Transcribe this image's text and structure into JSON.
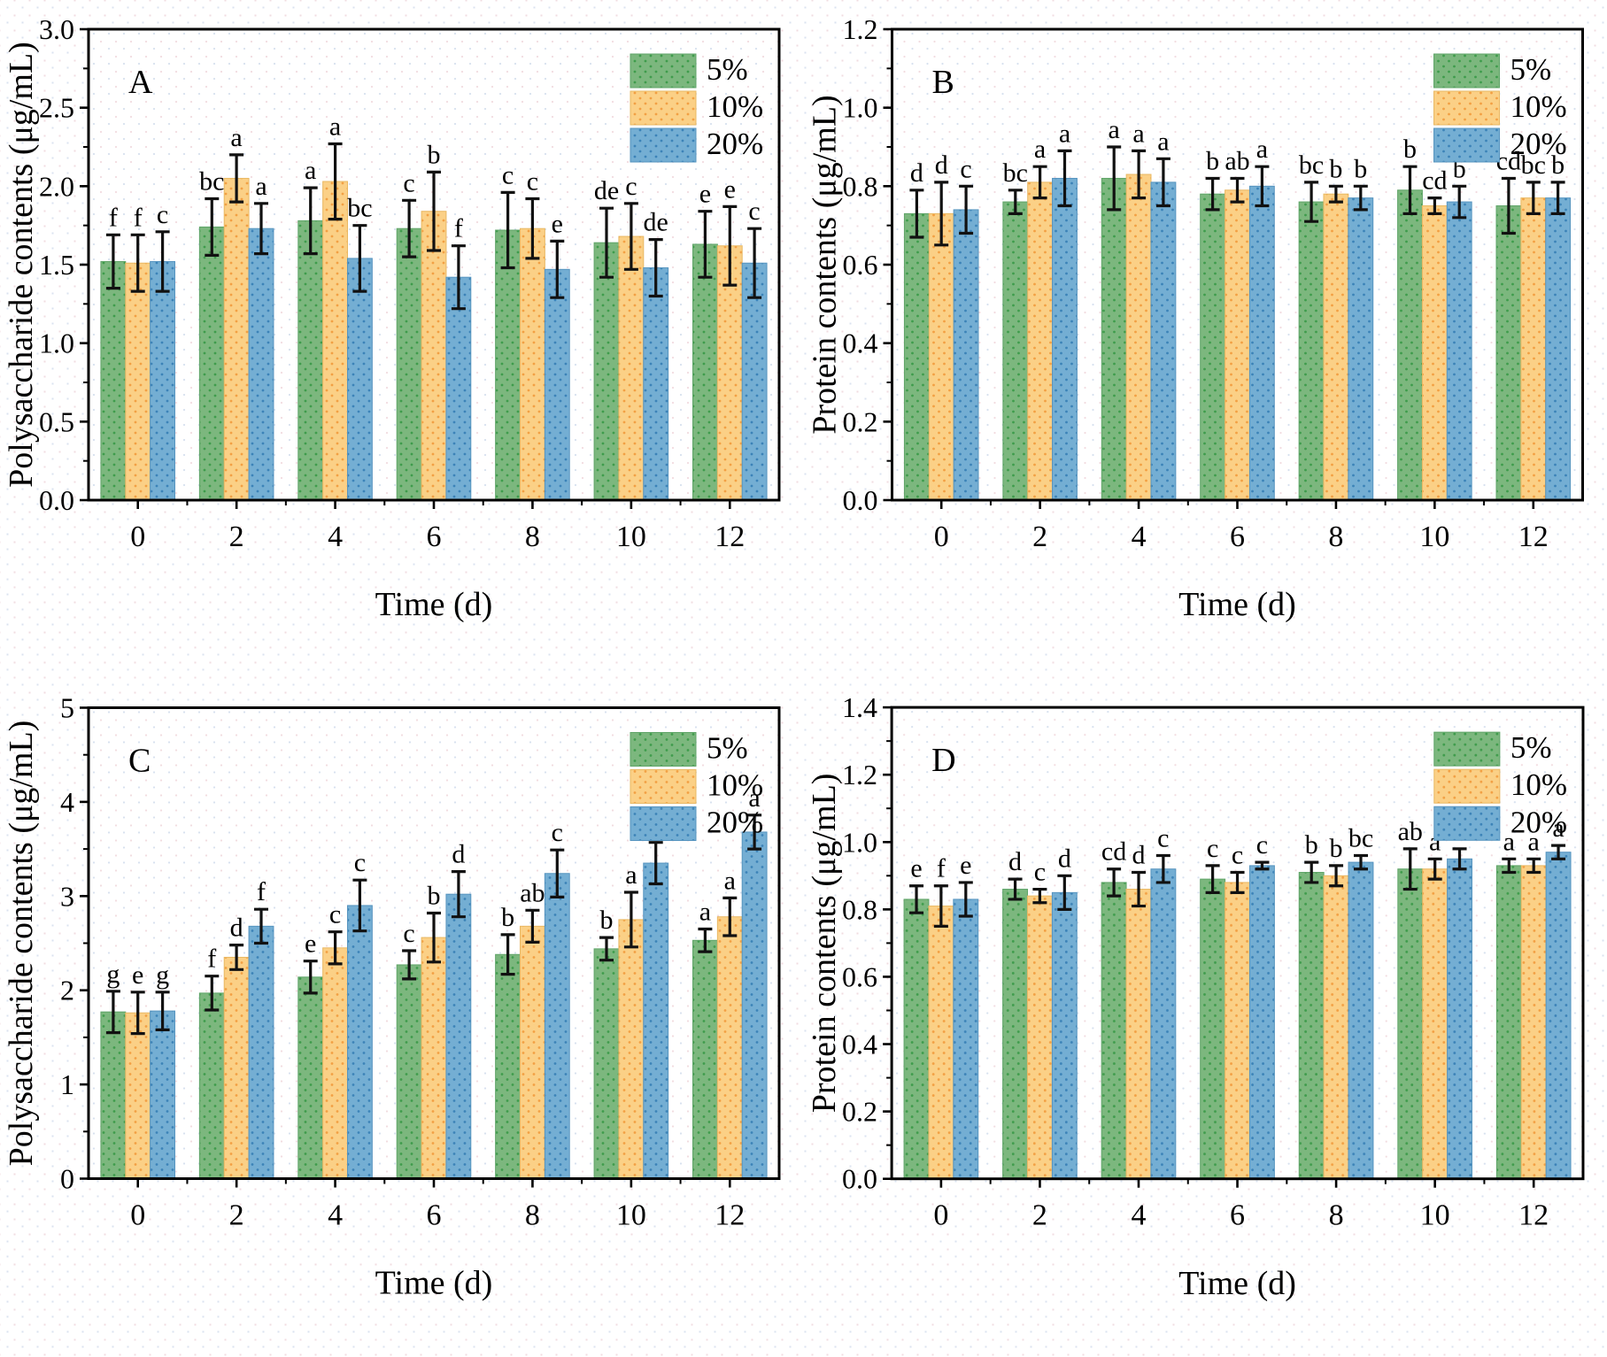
{
  "legend": {
    "labels": [
      "5%",
      "10%",
      "20%"
    ]
  },
  "colors": {
    "series_5pct_base": "#7cb77e",
    "series_5pct_dot": "#3f9c4c",
    "series_5pct_edge": "#5fa468",
    "series_10pct_base": "#fbd086",
    "series_10pct_dot": "#f2a044",
    "series_10pct_edge": "#e9b863",
    "series_20pct_base": "#74aed3",
    "series_20pct_dot": "#3c83b8",
    "series_20pct_edge": "#5694bf",
    "axis": "#000000",
    "error_bar": "#111111",
    "plot_bg_dot_blue": "#d7e1ef",
    "plot_bg_dot_pink": "#f2dce0"
  },
  "chart_data": [
    {
      "id": "A",
      "type": "bar",
      "panel_letter": "A",
      "ylabel": "Polysaccharide contents (μg/mL)",
      "xlabel": "Time (d)",
      "ylim": [
        0,
        3.0
      ],
      "ytick_step": 0.5,
      "yminor_step": 0.25,
      "ydecimals": 1,
      "grid": false,
      "legend_position": "top-right",
      "categories": [
        0,
        2,
        4,
        6,
        8,
        10,
        12
      ],
      "series": [
        {
          "name": "5%",
          "values": [
            1.52,
            1.74,
            1.78,
            1.73,
            1.72,
            1.64,
            1.63
          ],
          "errors": [
            0.17,
            0.18,
            0.21,
            0.18,
            0.24,
            0.22,
            0.21
          ],
          "letters": [
            "f",
            "bc",
            "a",
            "c",
            "c",
            "de",
            "e"
          ]
        },
        {
          "name": "10%",
          "values": [
            1.51,
            2.05,
            2.03,
            1.84,
            1.73,
            1.68,
            1.62
          ],
          "errors": [
            0.18,
            0.15,
            0.24,
            0.25,
            0.19,
            0.21,
            0.25
          ],
          "letters": [
            "f",
            "a",
            "a",
            "b",
            "c",
            "c",
            "e"
          ]
        },
        {
          "name": "20%",
          "values": [
            1.52,
            1.73,
            1.54,
            1.42,
            1.47,
            1.48,
            1.51
          ],
          "errors": [
            0.19,
            0.16,
            0.21,
            0.2,
            0.18,
            0.18,
            0.22
          ],
          "letters": [
            "c",
            "a",
            "bc",
            "f",
            "e",
            "de",
            "c"
          ]
        }
      ]
    },
    {
      "id": "B",
      "type": "bar",
      "panel_letter": "B",
      "ylabel": "Protein contents (μg/mL)",
      "xlabel": "Time (d)",
      "ylim": [
        0,
        1.2
      ],
      "ytick_step": 0.2,
      "yminor_step": 0.1,
      "ydecimals": 1,
      "grid": false,
      "legend_position": "top-right",
      "categories": [
        0,
        2,
        4,
        6,
        8,
        10,
        12
      ],
      "series": [
        {
          "name": "5%",
          "values": [
            0.73,
            0.76,
            0.82,
            0.78,
            0.76,
            0.79,
            0.75
          ],
          "errors": [
            0.06,
            0.03,
            0.08,
            0.04,
            0.05,
            0.06,
            0.07
          ],
          "letters": [
            "d",
            "bc",
            "a",
            "b",
            "bc",
            "b",
            "cd"
          ]
        },
        {
          "name": "10%",
          "values": [
            0.73,
            0.81,
            0.83,
            0.79,
            0.78,
            0.75,
            0.77
          ],
          "errors": [
            0.08,
            0.04,
            0.06,
            0.03,
            0.02,
            0.02,
            0.04
          ],
          "letters": [
            "d",
            "a",
            "a",
            "ab",
            "b",
            "cd",
            "bc"
          ]
        },
        {
          "name": "20%",
          "values": [
            0.74,
            0.82,
            0.81,
            0.8,
            0.77,
            0.76,
            0.77
          ],
          "errors": [
            0.06,
            0.07,
            0.06,
            0.05,
            0.03,
            0.04,
            0.04
          ],
          "letters": [
            "c",
            "a",
            "a",
            "a",
            "b",
            "b",
            "b"
          ]
        }
      ]
    },
    {
      "id": "C",
      "type": "bar",
      "panel_letter": "C",
      "ylabel": "Polysaccharide contents (μg/mL)",
      "xlabel": "Time (d)",
      "ylim": [
        0,
        5
      ],
      "ytick_step": 1,
      "yminor_step": 0.5,
      "ydecimals": 0,
      "grid": false,
      "legend_position": "top-right",
      "categories": [
        0,
        2,
        4,
        6,
        8,
        10,
        12
      ],
      "series": [
        {
          "name": "5%",
          "values": [
            1.77,
            1.97,
            2.14,
            2.27,
            2.38,
            2.44,
            2.53
          ],
          "errors": [
            0.22,
            0.18,
            0.17,
            0.15,
            0.21,
            0.12,
            0.12
          ],
          "letters": [
            "g",
            "f",
            "e",
            "c",
            "b",
            "b",
            "a"
          ]
        },
        {
          "name": "10%",
          "values": [
            1.76,
            2.35,
            2.45,
            2.56,
            2.68,
            2.75,
            2.78
          ],
          "errors": [
            0.22,
            0.13,
            0.17,
            0.26,
            0.17,
            0.29,
            0.2
          ],
          "letters": [
            "e",
            "d",
            "c",
            "b",
            "ab",
            "a",
            "a"
          ]
        },
        {
          "name": "20%",
          "values": [
            1.78,
            2.68,
            2.9,
            3.02,
            3.24,
            3.35,
            3.68
          ],
          "errors": [
            0.2,
            0.18,
            0.27,
            0.24,
            0.25,
            0.22,
            0.18
          ],
          "letters": [
            "g",
            "f",
            "c",
            "d",
            "c",
            "bc",
            "a"
          ]
        }
      ]
    },
    {
      "id": "D",
      "type": "bar",
      "panel_letter": "D",
      "ylabel": "Protein contents (μg/mL)",
      "xlabel": "Time (d)",
      "ylim": [
        0,
        1.4
      ],
      "ytick_step": 0.2,
      "yminor_step": 0.1,
      "ydecimals": 1,
      "grid": false,
      "legend_position": "top-right",
      "categories": [
        0,
        2,
        4,
        6,
        8,
        10,
        12
      ],
      "series": [
        {
          "name": "5%",
          "values": [
            0.83,
            0.86,
            0.88,
            0.89,
            0.91,
            0.92,
            0.93
          ],
          "errors": [
            0.04,
            0.03,
            0.04,
            0.04,
            0.03,
            0.06,
            0.02
          ],
          "letters": [
            "e",
            "d",
            "cd",
            "c",
            "b",
            "ab",
            "a"
          ]
        },
        {
          "name": "10%",
          "values": [
            0.81,
            0.84,
            0.86,
            0.88,
            0.9,
            0.92,
            0.93
          ],
          "errors": [
            0.06,
            0.02,
            0.05,
            0.03,
            0.03,
            0.03,
            0.02
          ],
          "letters": [
            "f",
            "c",
            "d",
            "c",
            "b",
            "a",
            "a"
          ]
        },
        {
          "name": "20%",
          "values": [
            0.83,
            0.85,
            0.92,
            0.93,
            0.94,
            0.95,
            0.97
          ],
          "errors": [
            0.05,
            0.05,
            0.04,
            0.01,
            0.02,
            0.03,
            0.02
          ],
          "letters": [
            "e",
            "d",
            "c",
            "c",
            "bc",
            "b",
            "a"
          ]
        }
      ]
    }
  ]
}
